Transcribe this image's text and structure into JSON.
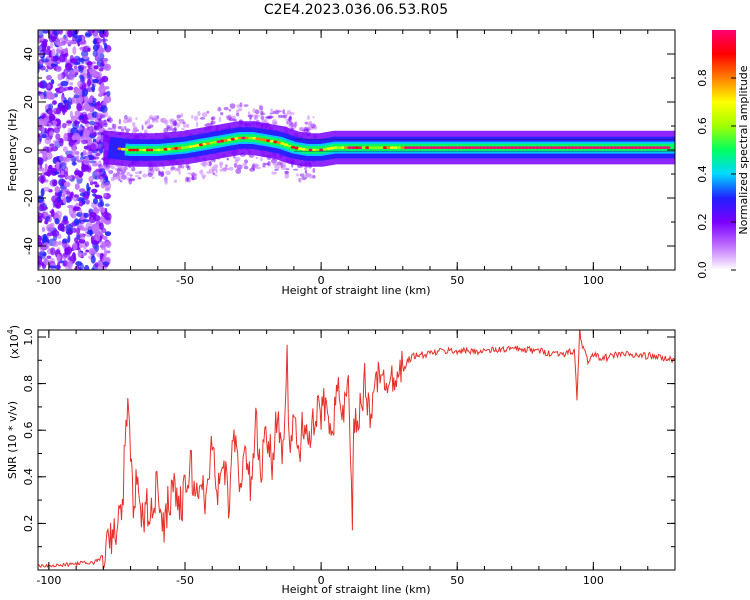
{
  "title": "C2E4.2023.036.06.53.R05",
  "chart_data": [
    {
      "type": "heatmap",
      "xlabel": "Height of straight line (km)",
      "ylabel": "Frequency (Hz)",
      "xlim": [
        -104,
        130
      ],
      "ylim": [
        -50,
        50
      ],
      "x_ticks": [
        -100,
        -50,
        0,
        50,
        100
      ],
      "y_ticks": [
        -40,
        -20,
        0,
        20,
        40
      ],
      "x_tick_labels": [
        "-100",
        "-50",
        "0",
        "50",
        "100"
      ],
      "y_tick_labels": [
        "-40",
        "-20",
        "0",
        "20",
        "40"
      ],
      "colorbar": {
        "label": "Normalized spectral amplitude",
        "range": [
          0,
          1
        ],
        "ticks": [
          0.0,
          0.2,
          0.4,
          0.6,
          0.8
        ],
        "tick_labels": [
          "0.0",
          "0.2",
          "0.4",
          "0.6",
          "0.8"
        ],
        "colors": [
          "#ffffff",
          "#c070ff",
          "#7a00ff",
          "#2020ff",
          "#00d8ff",
          "#00ff60",
          "#a0ff00",
          "#ffff00",
          "#ff8000",
          "#ff0000",
          "#ff0070"
        ]
      },
      "ridge": {
        "x": [
          -78,
          -70,
          -60,
          -50,
          -40,
          -30,
          -25,
          -20,
          -15,
          -10,
          -5,
          0,
          5,
          10,
          20,
          40,
          60,
          80,
          90,
          100,
          130
        ],
        "frequency": [
          1,
          0,
          0,
          1,
          3,
          5,
          5,
          4,
          3,
          1,
          0,
          0,
          1,
          1,
          1,
          1,
          1,
          1,
          1,
          1,
          1
        ]
      }
    },
    {
      "type": "line",
      "xlabel": "Height of straight line (km)",
      "ylabel": "SNR (10 * v/v)",
      "multiplier_label": "(x10",
      "multiplier_exp": "4",
      "multiplier_close": ")",
      "xlim": [
        -104,
        130
      ],
      "ylim": [
        0,
        1.03
      ],
      "x_ticks": [
        -100,
        -50,
        0,
        50,
        100
      ],
      "y_ticks": [
        0.2,
        0.4,
        0.6,
        0.8,
        1.0
      ],
      "x_tick_labels": [
        "-100",
        "-50",
        "0",
        "50",
        "100"
      ],
      "y_tick_labels": [
        "0.2",
        "0.4",
        "0.6",
        "0.8",
        "1.0"
      ],
      "color": "#e8302a",
      "series": [
        {
          "x": [
            -104,
            -95,
            -88,
            -84,
            -81,
            -79,
            -77,
            -75,
            -73,
            -72,
            -71,
            -70,
            -69,
            -68,
            -66,
            -64,
            -62,
            -60,
            -58,
            -56,
            -54,
            -52,
            -50,
            -48,
            -46,
            -44,
            -42,
            -40,
            -38,
            -36,
            -34,
            -32,
            -30,
            -28,
            -26,
            -24,
            -22,
            -20,
            -18,
            -16,
            -14,
            -12.5,
            -12,
            -10,
            -8,
            -6,
            -4,
            -2,
            0,
            2,
            4,
            6,
            8,
            10,
            11.5,
            12,
            14,
            16,
            18,
            20,
            22,
            24,
            26,
            28,
            30,
            32,
            34,
            36,
            40,
            45,
            50,
            60,
            70,
            80,
            85,
            90,
            93,
            94,
            95,
            96,
            98,
            100,
            105,
            110,
            115,
            120,
            125,
            130
          ],
          "y": [
            0.02,
            0.02,
            0.03,
            0.03,
            0.05,
            0.08,
            0.13,
            0.19,
            0.26,
            0.55,
            0.75,
            0.45,
            0.3,
            0.38,
            0.2,
            0.28,
            0.22,
            0.4,
            0.18,
            0.3,
            0.38,
            0.26,
            0.33,
            0.46,
            0.3,
            0.4,
            0.28,
            0.58,
            0.33,
            0.47,
            0.3,
            0.56,
            0.4,
            0.48,
            0.36,
            0.62,
            0.42,
            0.58,
            0.45,
            0.7,
            0.5,
            0.95,
            0.55,
            0.62,
            0.5,
            0.68,
            0.56,
            0.65,
            0.68,
            0.72,
            0.62,
            0.76,
            0.66,
            0.78,
            0.17,
            0.6,
            0.66,
            0.8,
            0.66,
            0.86,
            0.78,
            0.84,
            0.82,
            0.88,
            0.86,
            0.9,
            0.92,
            0.92,
            0.93,
            0.94,
            0.94,
            0.94,
            0.95,
            0.94,
            0.93,
            0.93,
            0.94,
            0.74,
            1.03,
            0.96,
            0.9,
            0.92,
            0.91,
            0.93,
            0.92,
            0.92,
            0.91,
            0.9
          ]
        }
      ]
    }
  ]
}
